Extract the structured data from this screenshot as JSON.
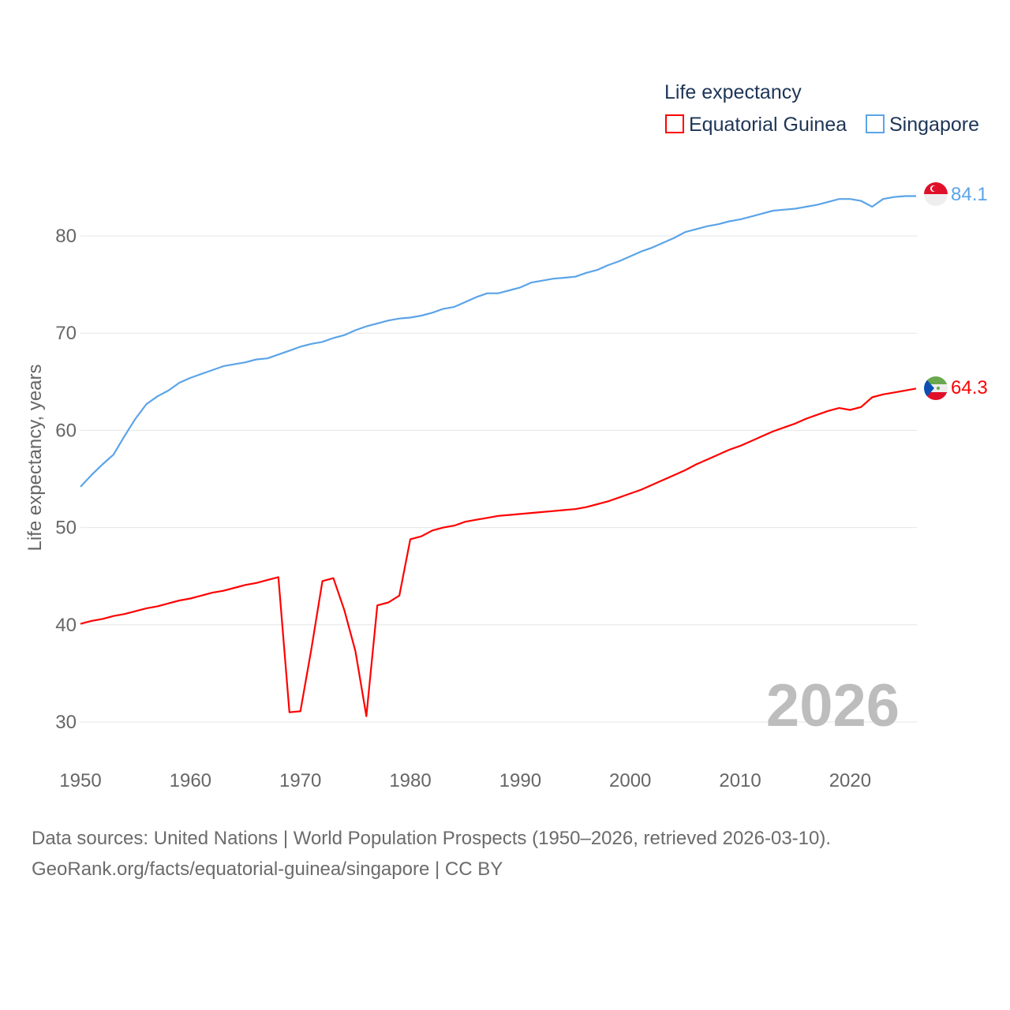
{
  "chart_data": {
    "type": "line",
    "title": "Life expectancy",
    "ylabel": "Life expectancy, years",
    "xlabel": "",
    "xlim": [
      1950,
      2026
    ],
    "ylim": [
      25,
      85
    ],
    "x_ticks": [
      1950,
      1960,
      1970,
      1980,
      1990,
      2000,
      2010,
      2020
    ],
    "y_ticks": [
      30,
      40,
      50,
      60,
      70,
      80
    ],
    "grid": true,
    "legend_position": "top-right",
    "year_label": "2026",
    "x_start": 1950,
    "series": [
      {
        "name": "Equatorial Guinea",
        "color": "#ff0000",
        "end_label": "64.3",
        "flag": "equatorial-guinea-flag",
        "values": [
          40.1,
          40.4,
          40.6,
          40.9,
          41.1,
          41.4,
          41.7,
          41.9,
          42.2,
          42.5,
          42.7,
          43.0,
          43.3,
          43.5,
          43.8,
          44.1,
          44.3,
          44.6,
          44.9,
          31.0,
          31.1,
          37.5,
          44.5,
          44.8,
          41.5,
          37.3,
          30.6,
          42.0,
          42.3,
          43.0,
          48.8,
          49.1,
          49.7,
          50.0,
          50.2,
          50.6,
          50.8,
          51.0,
          51.2,
          51.3,
          51.4,
          51.5,
          51.6,
          51.7,
          51.8,
          51.9,
          52.1,
          52.4,
          52.7,
          53.1,
          53.5,
          53.9,
          54.4,
          54.9,
          55.4,
          55.9,
          56.5,
          57.0,
          57.5,
          58.0,
          58.4,
          58.9,
          59.4,
          59.9,
          60.3,
          60.7,
          61.2,
          61.6,
          62.0,
          62.3,
          62.1,
          62.4,
          63.4,
          63.7,
          63.9,
          64.1,
          64.3
        ]
      },
      {
        "name": "Singapore",
        "color": "#5ba4e8",
        "end_label": "84.1",
        "flag": "singapore-flag",
        "values": [
          54.2,
          55.4,
          56.5,
          57.5,
          59.4,
          61.2,
          62.7,
          63.5,
          64.1,
          64.9,
          65.4,
          65.8,
          66.2,
          66.6,
          66.8,
          67.0,
          67.3,
          67.4,
          67.8,
          68.2,
          68.6,
          68.9,
          69.1,
          69.5,
          69.8,
          70.3,
          70.7,
          71.0,
          71.3,
          71.5,
          71.6,
          71.8,
          72.1,
          72.5,
          72.7,
          73.2,
          73.7,
          74.1,
          74.1,
          74.4,
          74.7,
          75.2,
          75.4,
          75.6,
          75.7,
          75.8,
          76.2,
          76.5,
          77.0,
          77.4,
          77.9,
          78.4,
          78.8,
          79.3,
          79.8,
          80.4,
          80.7,
          81.0,
          81.2,
          81.5,
          81.7,
          82.0,
          82.3,
          82.6,
          82.7,
          82.8,
          83.0,
          83.2,
          83.5,
          83.8,
          83.8,
          83.6,
          83.0,
          83.8,
          84.0,
          84.1,
          84.1
        ]
      }
    ]
  },
  "source": {
    "line1": "Data sources: United Nations | World Population Prospects (1950–2026, retrieved 2026-03-10).",
    "line2": "GeoRank.org/facts/equatorial-guinea/singapore | CC BY"
  }
}
